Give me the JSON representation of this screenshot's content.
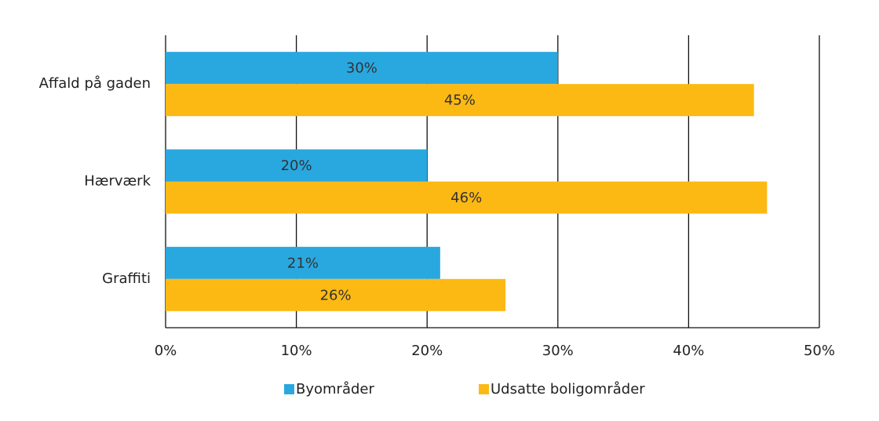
{
  "chart_data": {
    "type": "barh",
    "categories": [
      "Affald på gaden",
      "Hærværk",
      "Graffiti"
    ],
    "series": [
      {
        "name": "Byområder",
        "color": "#29a8e0",
        "values": [
          30,
          20,
          21
        ],
        "value_labels": [
          "30%",
          "20%",
          "21%"
        ]
      },
      {
        "name": "Udsatte boligområder",
        "color": "#fdb913",
        "values": [
          45,
          46,
          26
        ],
        "value_labels": [
          "45%",
          "46%",
          "26%"
        ]
      }
    ],
    "xlim": [
      0,
      50
    ],
    "xticks": [
      {
        "value": 0,
        "label": "0%"
      },
      {
        "value": 10,
        "label": "10%"
      },
      {
        "value": 20,
        "label": "20%"
      },
      {
        "value": 30,
        "label": "30%"
      },
      {
        "value": 40,
        "label": "40%"
      },
      {
        "value": 50,
        "label": "50%"
      }
    ],
    "grid": true,
    "legend": "bottom"
  }
}
